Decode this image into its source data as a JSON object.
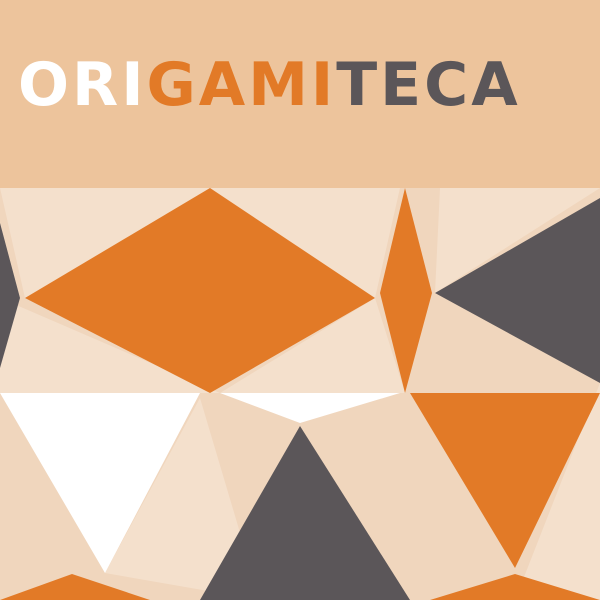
{
  "brand": {
    "segments": [
      {
        "text": "ORI",
        "color": "#ffffff"
      },
      {
        "text": "GAMI",
        "color": "#e27a27"
      },
      {
        "text": "TECA",
        "color": "#5b5659"
      }
    ]
  },
  "palette": {
    "header_bg": "#edc49c",
    "pattern_bg": "#f0d6bd",
    "light_tile": "#f4e0cc",
    "orange": "#e27a27",
    "gray": "#5b5659",
    "white": "#ffffff"
  }
}
